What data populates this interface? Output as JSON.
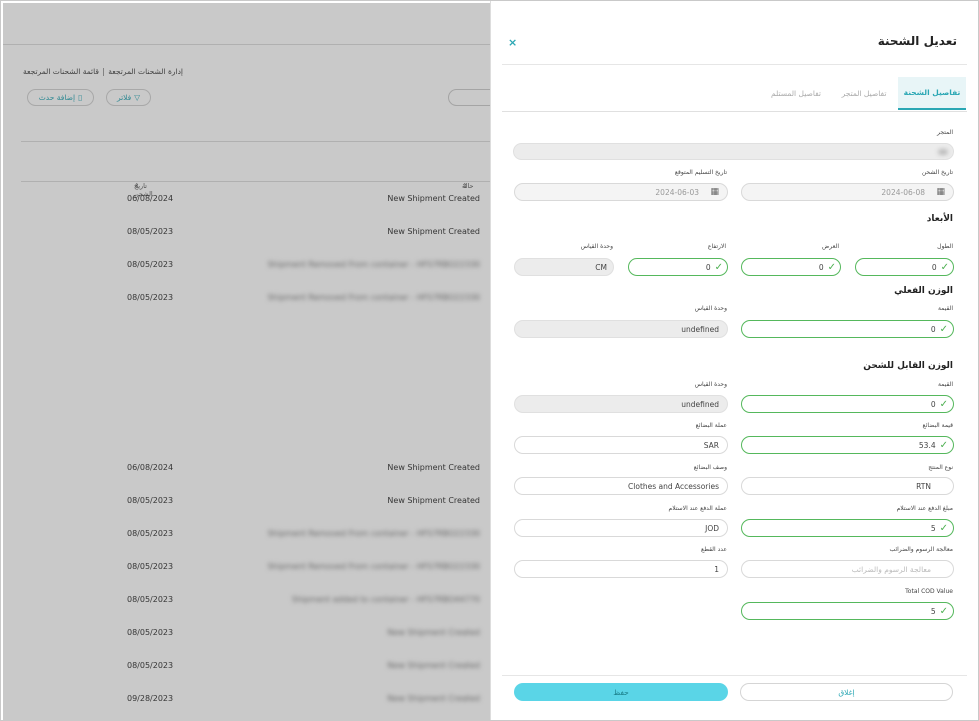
{
  "background": {
    "breadcrumb": {
      "parent": "إدارة الشحنات المرتجعة",
      "current": "قائمة الشحنات المرتجعة",
      "separator": "|"
    },
    "buttons": {
      "add_event": "إضافة حدث",
      "filters": "فلاتر"
    },
    "table_headers": {
      "status": "حالة",
      "ship_date": "تاريخ الشحن"
    },
    "rows": [
      {
        "date": "06/08/2024",
        "status": "New Shipment Created"
      },
      {
        "date": "08/05/2023",
        "status": "New Shipment Created"
      },
      {
        "date": "08/05/2023",
        "status": "Shipment Removed From container - HFS7RBO22330"
      },
      {
        "date": "08/05/2023",
        "status": "Shipment Removed From container - HFS7RBO22330"
      },
      {
        "date": "06/08/2024",
        "status": "New Shipment Created"
      },
      {
        "date": "08/05/2023",
        "status": "New Shipment Created"
      },
      {
        "date": "08/05/2023",
        "status": "Shipment Removed From container - HFS7RBO22330"
      },
      {
        "date": "08/05/2023",
        "status": "Shipment Removed From container - HFS7RBO22330"
      },
      {
        "date": "08/05/2023",
        "status": "Shipment added to container - HFS7RBO44770"
      },
      {
        "date": "08/05/2023",
        "status": "New Shipment Created"
      },
      {
        "date": "08/05/2023",
        "status": "New Shipment Created"
      },
      {
        "date": "09/28/2023",
        "status": "New Shipment Created"
      }
    ]
  },
  "drawer": {
    "title": "تعديل الشحنة",
    "close_icon": "×",
    "tabs": [
      {
        "label": "تفاصيل الشحنة",
        "active": true
      },
      {
        "label": "تفاصيل المتجر",
        "active": false
      },
      {
        "label": "تفاصيل المستلم",
        "active": false
      }
    ],
    "store_label": "المتجر",
    "ship_date_label": "تاريخ الشحن",
    "ship_date_value": "2024-06-08",
    "expected_delivery_label": "تاريخ التسليم المتوقع",
    "expected_delivery_value": "2024-06-03",
    "dimensions": {
      "title": "الأبعاد",
      "length_label": "الطول",
      "length": "0",
      "width_label": "العرض",
      "width": "0",
      "height_label": "الارتفاع",
      "height": "0",
      "unit_label": "وحدة القياس",
      "unit": "CM"
    },
    "actual_weight": {
      "title": "الوزن الفعلي",
      "value_label": "القيمة",
      "value": "0",
      "unit_label": "وحدة القياس",
      "unit": "undefined"
    },
    "chargeable_weight": {
      "title": "الوزن القابل للشحن",
      "value_label": "القيمة",
      "value": "0",
      "unit_label": "وحدة القياس",
      "unit": "undefined"
    },
    "goods_value_label": "قيمة البضائع",
    "goods_value": "53.4",
    "goods_currency_label": "عملة البضائع",
    "goods_currency": "SAR",
    "product_type_label": "نوع المنتج",
    "product_type": "RTN",
    "goods_desc_label": "وصف البضائع",
    "goods_desc": "Clothes and Accessories",
    "cod_amount_label": "مبلغ الدفع عند الاستلام",
    "cod_amount": "5",
    "cod_currency_label": "عملة الدفع عند الاستلام",
    "cod_currency": "JOD",
    "duties_label": "معالجة الرسوم والضرائب",
    "duties_placeholder": "معالجة الرسوم والضرائب",
    "pieces_label": "عدد القطع",
    "pieces": "1",
    "total_cod_label": "Total COD Value",
    "total_cod": "5",
    "footer": {
      "close": "إغلاق",
      "save": "حفظ"
    }
  }
}
